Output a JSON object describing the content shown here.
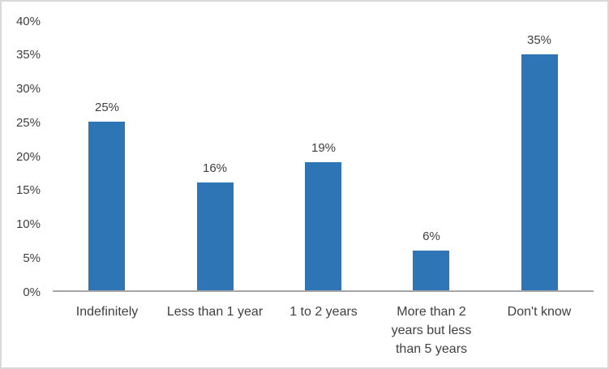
{
  "chart_data": {
    "type": "bar",
    "categories": [
      "Indefinitely",
      "Less than 1 year",
      "1 to 2 years",
      "More than 2 years but less than 5 years",
      "Don't know"
    ],
    "values": [
      25,
      16,
      19,
      6,
      35
    ],
    "data_labels": [
      "25%",
      "16%",
      "19%",
      "6%",
      "35%"
    ],
    "title": "",
    "xlabel": "",
    "ylabel": "",
    "ylim": [
      0,
      40
    ],
    "ytick_interval": 5,
    "ytick_labels": [
      "0%",
      "5%",
      "10%",
      "15%",
      "20%",
      "25%",
      "30%",
      "35%",
      "40%"
    ],
    "grid": false,
    "legend": false,
    "colors": {
      "bar": "#2e75b6",
      "axis_line": "#a6a6a6",
      "text": "#3f3f3f",
      "frame_border": "#d9d9d9",
      "background": "#ffffff"
    }
  }
}
